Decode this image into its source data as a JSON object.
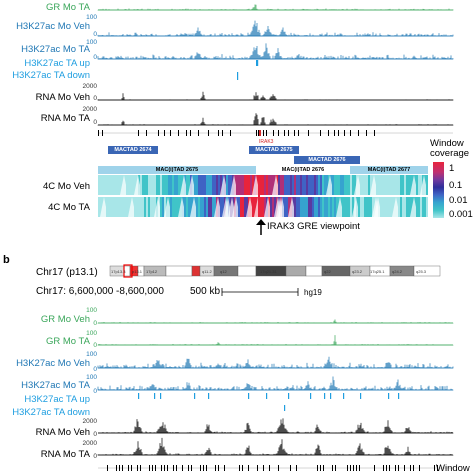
{
  "panel_a": {
    "tracks": [
      {
        "label": "GR Mo TA",
        "color": "#3aa65a",
        "ticks": []
      },
      {
        "label": "H3K27ac Mo Veh",
        "color": "#1f77b4",
        "ticks": [
          "100",
          "0"
        ]
      },
      {
        "label": "H3K27ac Mo TA",
        "color": "#1f77b4",
        "ticks": [
          "100",
          "0"
        ]
      },
      {
        "label": "H3K27ac TA up",
        "color": "#1f9ee0",
        "ticks": []
      },
      {
        "label": "H3K27ac TA down",
        "color": "#1f9ee0",
        "ticks": []
      },
      {
        "label": "RNA Mo Veh",
        "color": "#000000",
        "ticks": [
          "2000",
          "0"
        ]
      },
      {
        "label": "RNA Mo TA",
        "color": "#000000",
        "ticks": [
          "2000",
          "0"
        ]
      }
    ],
    "gene_label": "IRAK3",
    "tads": {
      "mactad_2674": "MACTAD 2674",
      "mactad_2675": "MACTAD 2675",
      "mactad_2676": "MACTAD 2676",
      "mac_itad_2675": "MAC(i)TAD 2675",
      "mac_itad_2676": "MAC(i)TAD 2676",
      "mac_itad_2677": "MAC(i)TAD 2677"
    },
    "fourc_tracks": [
      "4C Mo Veh",
      "4C Mo TA"
    ],
    "viewpoint_label": "IRAK3 GRE viewpoint",
    "legend": {
      "title_line1": "Window",
      "title_line2": "coverage",
      "values": [
        "1",
        "0.1",
        "0.01",
        "0.001"
      ]
    }
  },
  "panel_b": {
    "letter": "b",
    "chromosome": "Chr17 (p13.1)",
    "band_labels": [
      "17p13.3",
      "p13.1",
      "17p12",
      "q11.2",
      "q12",
      "17q21.31",
      "q22",
      "q23.2",
      "q24.2",
      "17q25.1",
      "q25.3"
    ],
    "coords": "Chr17: 6,600,000 -8,600,000",
    "scale_label": "500 kb",
    "genome": "hg19",
    "tracks": [
      {
        "label": "GR Mo Veh",
        "color": "#3aa65a",
        "ticks": [
          "100",
          "0"
        ]
      },
      {
        "label": "GR Mo TA",
        "color": "#3aa65a",
        "ticks": [
          "100",
          "0"
        ]
      },
      {
        "label": "H3K27ac Mo Veh",
        "color": "#1f77b4",
        "ticks": [
          "100",
          "0"
        ]
      },
      {
        "label": "H3K27ac Mo TA",
        "color": "#1f77b4",
        "ticks": [
          "100",
          "0"
        ]
      },
      {
        "label": "H3K27ac TA up",
        "color": "#1f9ee0",
        "ticks": []
      },
      {
        "label": "H3K27ac TA down",
        "color": "#1f9ee0",
        "ticks": []
      },
      {
        "label": "RNA Mo Veh",
        "color": "#000000",
        "ticks": [
          "2000",
          "0"
        ]
      },
      {
        "label": "RNA Mo TA",
        "color": "#000000",
        "ticks": [
          "2000",
          "0"
        ]
      }
    ],
    "legend_partial": "Window"
  }
}
